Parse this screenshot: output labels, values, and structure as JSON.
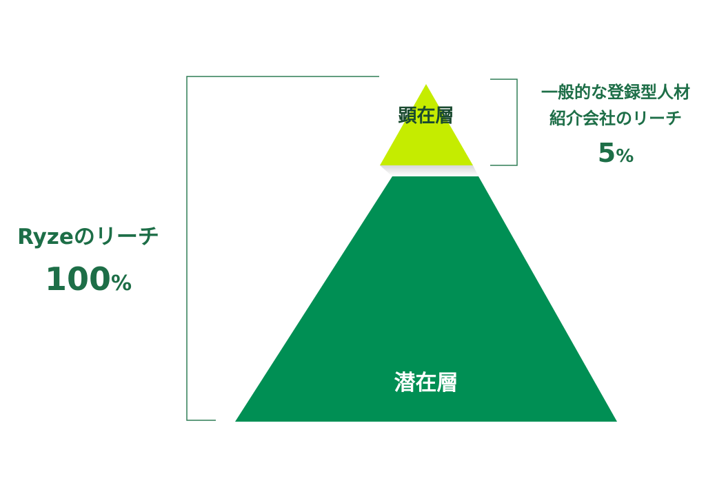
{
  "pyramid": {
    "top_layer": {
      "label": "顕在層",
      "color": "#c5ec00"
    },
    "bottom_layer": {
      "label": "潜在層",
      "color": "#008f54"
    }
  },
  "right_annotation": {
    "line1": "一般的な登録型人材",
    "line2": "紹介会社のリーチ",
    "percent": "5",
    "percent_unit": "%"
  },
  "left_annotation": {
    "title": "Ryzeのリーチ",
    "percent": "100",
    "percent_unit": "%"
  },
  "colors": {
    "text": "#1d6e47",
    "bracket": "#2e7d55"
  }
}
